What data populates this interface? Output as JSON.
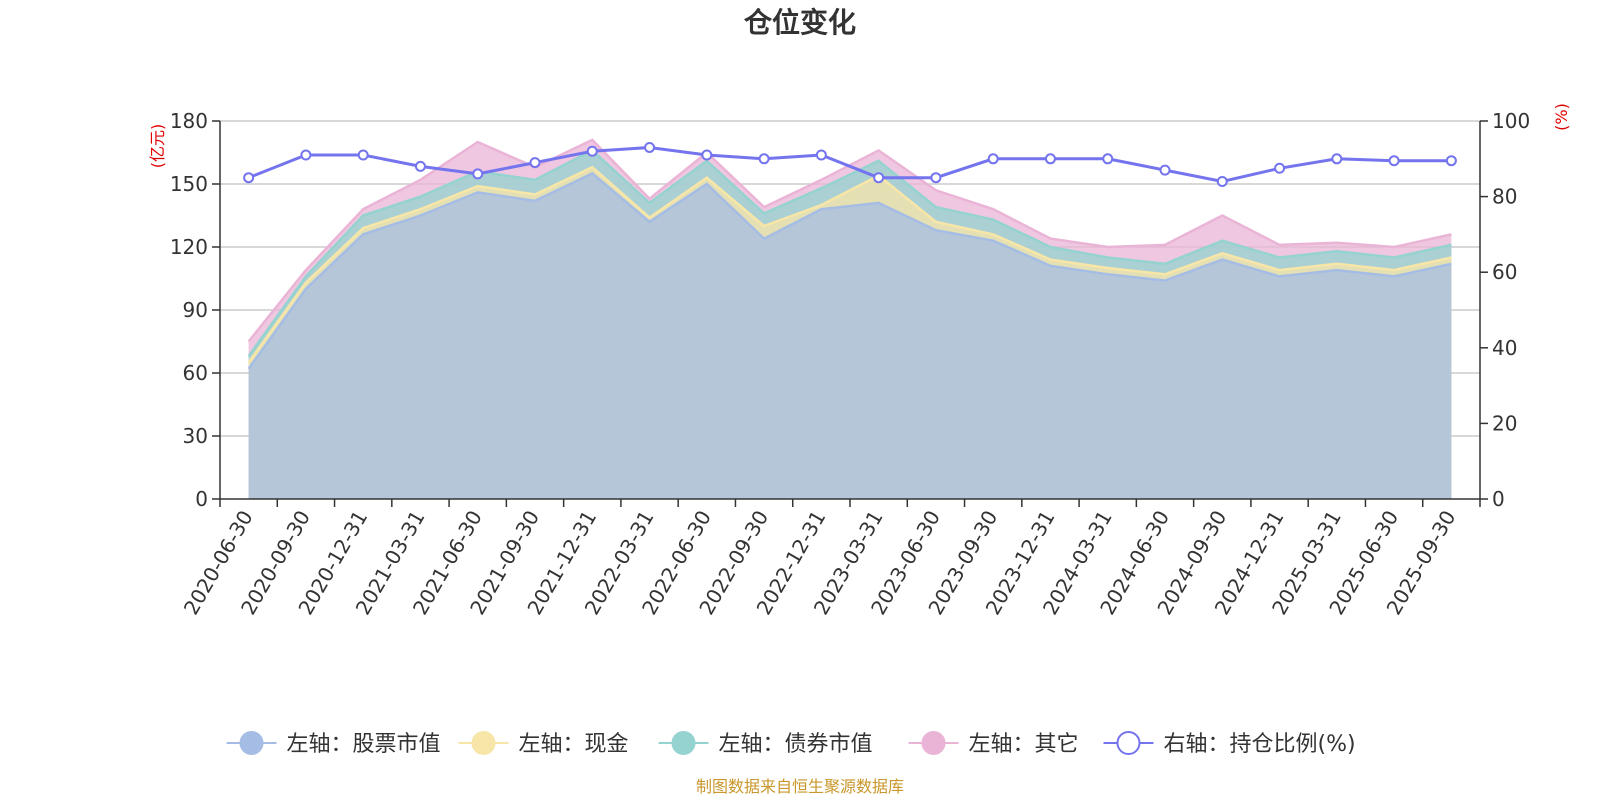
{
  "chart_data": {
    "type": "area",
    "title": "仓位变化",
    "source_note": "制图数据来自恒生聚源数据库",
    "left_axis": {
      "unit": "(亿元)",
      "ylim": [
        0,
        180
      ],
      "ticks": [
        0,
        30,
        60,
        90,
        120,
        150,
        180
      ]
    },
    "right_axis": {
      "unit": "(%)",
      "ylim": [
        0,
        100
      ],
      "ticks": [
        0,
        20,
        40,
        60,
        80,
        100
      ]
    },
    "categories": [
      "2020-06-30",
      "2020-09-30",
      "2020-12-31",
      "2021-03-31",
      "2021-06-30",
      "2021-09-30",
      "2021-12-31",
      "2022-03-31",
      "2022-06-30",
      "2022-09-30",
      "2022-12-31",
      "2023-03-31",
      "2023-06-30",
      "2023-09-30",
      "2023-12-31",
      "2024-03-31",
      "2024-06-30",
      "2024-09-30",
      "2024-12-31",
      "2025-03-31",
      "2025-06-30",
      "2025-09-30"
    ],
    "stacked_series": [
      {
        "name": "左轴：股票市值",
        "color": "#a5bde5",
        "values": [
          62,
          100,
          126,
          135,
          146,
          142,
          155,
          132,
          150,
          124,
          138,
          141,
          128,
          123,
          111,
          107,
          104,
          114,
          106,
          109,
          106,
          112
        ]
      },
      {
        "name": "左轴：现金",
        "color": "#f7e6a8",
        "values": [
          3,
          3,
          3,
          3,
          3,
          3,
          3,
          2,
          3,
          6,
          2,
          13,
          4,
          3,
          3,
          3,
          3,
          3,
          3,
          3,
          3,
          3
        ]
      },
      {
        "name": "左轴：债券市值",
        "color": "#94d3d0",
        "values": [
          3,
          3,
          6,
          6,
          7,
          7,
          8,
          7,
          8,
          6,
          8,
          7,
          7,
          7,
          6,
          5,
          5,
          6,
          6,
          6,
          6,
          6
        ]
      },
      {
        "name": "左轴：其它",
        "color": "#eab4d6",
        "values": [
          7,
          3,
          3,
          8,
          14,
          6,
          5,
          2,
          4,
          3,
          4,
          5,
          8,
          5,
          4,
          5,
          9,
          12,
          6,
          4,
          5,
          5
        ]
      }
    ],
    "line_series": {
      "name": "右轴：持仓比例(%)",
      "color": "#7474ee",
      "values": [
        85,
        91,
        91,
        88,
        86,
        89,
        92,
        93,
        91,
        90,
        91,
        85,
        85,
        90,
        90,
        90,
        87,
        84,
        87.5,
        90,
        89.5,
        89.5
      ]
    },
    "legend_position": "bottom-center"
  }
}
